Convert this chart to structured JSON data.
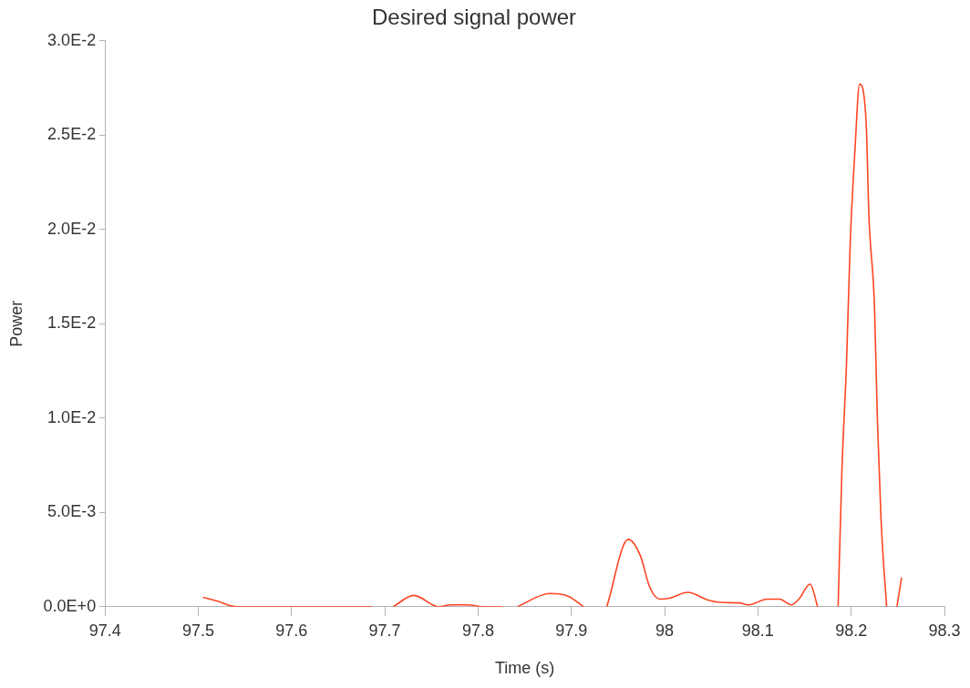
{
  "chart_data": {
    "type": "line",
    "title": "Desired signal power",
    "xlabel": "Time (s)",
    "ylabel": "Power",
    "x": [
      97.505,
      97.52,
      97.542,
      97.6,
      97.687,
      null,
      97.709,
      97.731,
      97.758,
      97.771,
      97.789,
      97.805,
      97.826,
      null,
      97.842,
      97.877,
      97.897,
      97.913,
      null,
      97.938,
      97.961,
      97.974,
      97.984,
      97.995,
      98.005,
      98.025,
      98.045,
      98.06,
      98.08,
      98.09,
      98.11,
      98.123,
      98.136,
      98.144,
      98.156,
      98.164,
      null,
      98.186,
      98.19,
      98.195,
      98.199,
      98.204,
      98.209,
      98.216,
      98.219,
      98.225,
      98.228,
      98.232,
      98.238,
      null,
      98.249,
      98.254
    ],
    "series": [
      {
        "color": "#ff4422",
        "values": [
          0.0005,
          0.0003,
          0,
          0,
          0,
          null,
          0,
          0.0006,
          0,
          0.0001,
          0.0001,
          0,
          0,
          null,
          0,
          0.0007,
          0.00055,
          0,
          null,
          0,
          0.00357,
          0.0027,
          0.00104,
          0.0004,
          0.00045,
          0.00076,
          0.00038,
          0.00023,
          0.0002,
          0.0001,
          0.0004,
          0.0004,
          0.0001,
          0.0004,
          0.0012,
          0,
          null,
          0,
          0.00716,
          0.01296,
          0.01935,
          0.02418,
          0.0277,
          0.0257,
          0.0207,
          0.01587,
          0.01005,
          0.0046,
          0,
          null,
          0,
          0.00154
        ]
      }
    ],
    "xlim": [
      97.4,
      98.3
    ],
    "xticks": [
      97.4,
      97.5,
      97.6,
      97.7,
      97.8,
      97.9,
      98,
      98.1,
      98.2,
      98.3
    ],
    "ylim": [
      0,
      0.03
    ],
    "yticks": [
      {
        "value": 0,
        "label": "0.0E+0"
      },
      {
        "value": 0.005,
        "label": "5.0E-3"
      },
      {
        "value": 0.01,
        "label": "1.0E-2"
      },
      {
        "value": 0.015,
        "label": "1.5E-2"
      },
      {
        "value": 0.02,
        "label": "2.0E-2"
      },
      {
        "value": 0.025,
        "label": "2.5E-2"
      },
      {
        "value": 0.03,
        "label": "3.0E-2"
      }
    ],
    "grid": false,
    "legend": false,
    "marker": "none",
    "line_style": "solid"
  }
}
